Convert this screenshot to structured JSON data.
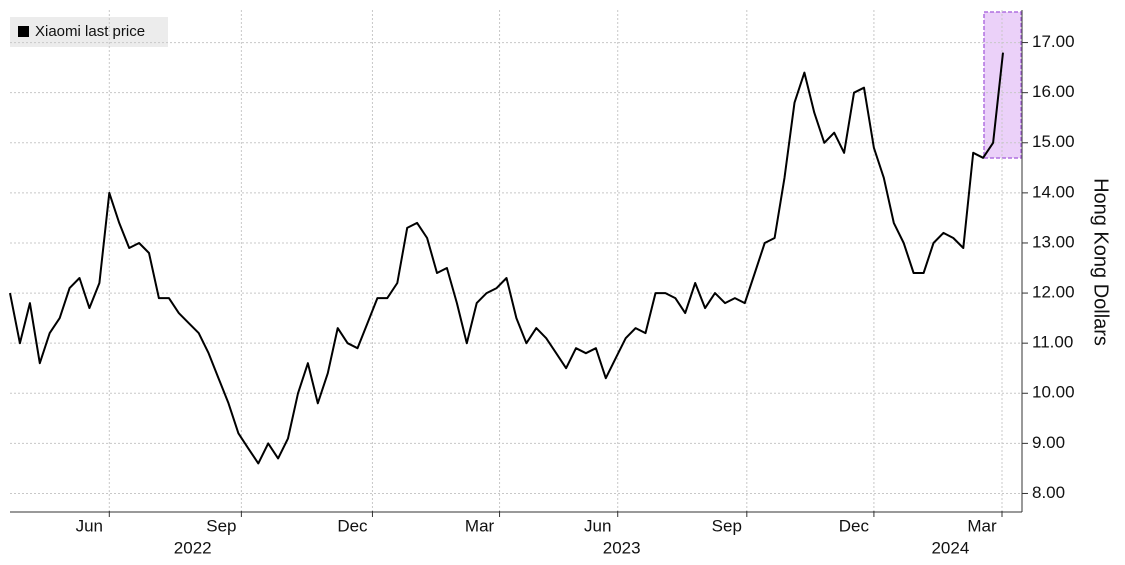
{
  "chart_data": {
    "type": "line",
    "categories": [
      null,
      null,
      null,
      null,
      null,
      null,
      null,
      null,
      null,
      null,
      null,
      null,
      null,
      null,
      null,
      null,
      null,
      null,
      null,
      null,
      null,
      null,
      null,
      null,
      null,
      null,
      null,
      null,
      null,
      null,
      null,
      null,
      null,
      null,
      null,
      null,
      null,
      null,
      null,
      null,
      null,
      null,
      null,
      null,
      null,
      null,
      null,
      null,
      null,
      null,
      null,
      null,
      null,
      null,
      null,
      null,
      null,
      null,
      null,
      null,
      null,
      null,
      null,
      null,
      null,
      null,
      null,
      null,
      null,
      null,
      null,
      null,
      null,
      null,
      null,
      null,
      null,
      null,
      null,
      null,
      null,
      null,
      null,
      null,
      null,
      null,
      null,
      null,
      null,
      null,
      null,
      null,
      null,
      null,
      null,
      null,
      null,
      null,
      null,
      null,
      null
    ],
    "series": [
      {
        "name": "Xiaomi last price",
        "color": "#000000",
        "values": [
          12.0,
          11.0,
          11.8,
          10.6,
          11.2,
          11.5,
          12.1,
          12.3,
          11.7,
          12.2,
          14.0,
          13.4,
          12.9,
          13.0,
          12.8,
          11.9,
          11.9,
          11.6,
          11.4,
          11.2,
          10.8,
          10.3,
          9.8,
          9.2,
          8.9,
          8.6,
          9.0,
          8.7,
          9.1,
          10.0,
          10.6,
          9.8,
          10.4,
          11.3,
          11.0,
          10.9,
          11.4,
          11.9,
          11.9,
          12.2,
          13.3,
          13.4,
          13.1,
          12.4,
          12.5,
          11.8,
          11.0,
          11.8,
          12.0,
          12.1,
          12.3,
          11.5,
          11.0,
          11.3,
          11.1,
          10.8,
          10.5,
          10.9,
          10.8,
          10.9,
          10.3,
          10.7,
          11.1,
          11.3,
          11.2,
          12.0,
          12.0,
          11.9,
          11.6,
          12.2,
          11.7,
          12.0,
          11.8,
          11.9,
          11.8,
          12.4,
          13.0,
          13.1,
          14.3,
          15.8,
          16.4,
          15.6,
          15.0,
          15.2,
          14.8,
          16.0,
          16.1,
          14.9,
          14.3,
          13.4,
          13.0,
          12.4,
          12.4,
          13.0,
          13.2,
          13.1,
          12.9,
          14.8,
          14.7,
          15.0,
          16.8
        ]
      }
    ],
    "xlim": [
      0,
      100
    ],
    "xticks": [
      {
        "value": 10,
        "label": "Jun"
      },
      {
        "value": 23.3,
        "label": "Sep"
      },
      {
        "value": 36.5,
        "label": "Dec"
      },
      {
        "value": 49.3,
        "label": "Mar"
      },
      {
        "value": 61.2,
        "label": "Jun"
      },
      {
        "value": 74.2,
        "label": "Sep"
      },
      {
        "value": 87,
        "label": "Dec"
      },
      {
        "value": 99.9,
        "label": "Mar"
      }
    ],
    "xyears": [
      {
        "value": 18.4,
        "label": "2022"
      },
      {
        "value": 61.6,
        "label": "2023"
      },
      {
        "value": 94.7,
        "label": "2024"
      }
    ],
    "ylim": [
      7.65,
      17.65
    ],
    "yticks": [
      {
        "value": 8,
        "label": "8.00"
      },
      {
        "value": 9,
        "label": "9.00"
      },
      {
        "value": 10,
        "label": "10.00"
      },
      {
        "value": 11,
        "label": "11.00"
      },
      {
        "value": 12,
        "label": "12.00"
      },
      {
        "value": 13,
        "label": "13.00"
      },
      {
        "value": 14,
        "label": "14.00"
      },
      {
        "value": 15,
        "label": "15.00"
      },
      {
        "value": 16,
        "label": "16.00"
      },
      {
        "value": 17,
        "label": "17.00"
      }
    ],
    "ylabel": "Hong Kong Dollars",
    "grid": true
  }
}
